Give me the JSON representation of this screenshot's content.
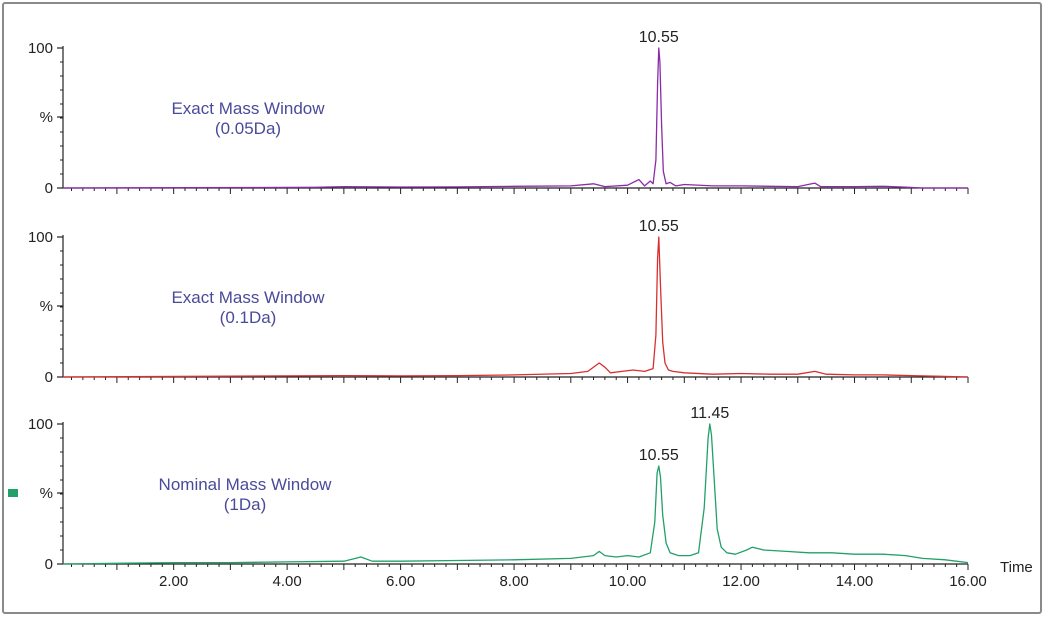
{
  "chart_data": {
    "type": "line",
    "x_range": [
      0.05,
      16.0
    ],
    "x_axis_label": "Time",
    "x_tick_labels": [
      "2.00",
      "4.00",
      "6.00",
      "8.00",
      "10.00",
      "12.00",
      "14.00",
      "16.00"
    ],
    "x_tick_values": [
      2,
      4,
      6,
      8,
      10,
      12,
      14,
      16
    ],
    "panels": [
      {
        "annotation": [
          "Exact Mass Window",
          "(0.05Da)"
        ],
        "annotation_color": "#4a4a9a",
        "color": "#8a2ca8",
        "y_tick_labels": [
          "100",
          "%",
          "0"
        ],
        "y_range": [
          0,
          100
        ],
        "peaks": [
          {
            "x": 10.55,
            "y": 100,
            "label": "10.55"
          }
        ],
        "series": [
          [
            0.05,
            0
          ],
          [
            4.5,
            0.5
          ],
          [
            5.0,
            1
          ],
          [
            6.0,
            0.7
          ],
          [
            7.0,
            0.8
          ],
          [
            8.0,
            1.2
          ],
          [
            9.0,
            1.5
          ],
          [
            9.4,
            3
          ],
          [
            9.6,
            1
          ],
          [
            10.0,
            2
          ],
          [
            10.2,
            6
          ],
          [
            10.3,
            1.5
          ],
          [
            10.4,
            5
          ],
          [
            10.45,
            3
          ],
          [
            10.5,
            20
          ],
          [
            10.53,
            75
          ],
          [
            10.55,
            100
          ],
          [
            10.57,
            90
          ],
          [
            10.6,
            45
          ],
          [
            10.63,
            12
          ],
          [
            10.68,
            3
          ],
          [
            10.75,
            4
          ],
          [
            10.85,
            1.5
          ],
          [
            11.0,
            2.5
          ],
          [
            11.5,
            1.5
          ],
          [
            12.0,
            1.5
          ],
          [
            12.5,
            1.2
          ],
          [
            13.0,
            1
          ],
          [
            13.3,
            3.5
          ],
          [
            13.4,
            1
          ],
          [
            14.0,
            1
          ],
          [
            14.5,
            1.2
          ],
          [
            14.9,
            0.6
          ],
          [
            15.2,
            0
          ],
          [
            16.0,
            0
          ]
        ]
      },
      {
        "annotation": [
          "Exact Mass Window",
          "(0.1Da)"
        ],
        "annotation_color": "#4a4a9a",
        "color": "#d83030",
        "y_tick_labels": [
          "100",
          "%",
          "0"
        ],
        "y_range": [
          0,
          100
        ],
        "peaks": [
          {
            "x": 10.55,
            "y": 100,
            "label": "10.55"
          }
        ],
        "series": [
          [
            0.05,
            0
          ],
          [
            5.0,
            1
          ],
          [
            6.0,
            0.8
          ],
          [
            7.0,
            1
          ],
          [
            8.0,
            1.5
          ],
          [
            9.0,
            2.5
          ],
          [
            9.3,
            4
          ],
          [
            9.5,
            10
          ],
          [
            9.6,
            7
          ],
          [
            9.7,
            3
          ],
          [
            9.9,
            4
          ],
          [
            10.1,
            5
          ],
          [
            10.3,
            4
          ],
          [
            10.45,
            6
          ],
          [
            10.5,
            30
          ],
          [
            10.53,
            85
          ],
          [
            10.55,
            100
          ],
          [
            10.58,
            65
          ],
          [
            10.62,
            25
          ],
          [
            10.66,
            10
          ],
          [
            10.72,
            5
          ],
          [
            10.8,
            4
          ],
          [
            11.0,
            3
          ],
          [
            11.5,
            2
          ],
          [
            12.0,
            2.5
          ],
          [
            12.5,
            2
          ],
          [
            13.0,
            2
          ],
          [
            13.3,
            4
          ],
          [
            13.5,
            2
          ],
          [
            14.0,
            1.5
          ],
          [
            14.5,
            1.5
          ],
          [
            15.0,
            1
          ],
          [
            15.5,
            0.5
          ],
          [
            16.0,
            0
          ]
        ]
      },
      {
        "annotation": [
          "Nominal Mass Window",
          "(1Da)"
        ],
        "annotation_color": "#4a4a9a",
        "color": "#22a06a",
        "y_tick_labels": [
          "100",
          "%",
          "0"
        ],
        "y_range": [
          0,
          100
        ],
        "peaks": [
          {
            "x": 10.55,
            "y": 70,
            "label": "10.55"
          },
          {
            "x": 11.45,
            "y": 100,
            "label": "11.45"
          }
        ],
        "series": [
          [
            0.05,
            0
          ],
          [
            1.0,
            0.5
          ],
          [
            2.0,
            1
          ],
          [
            3.0,
            1
          ],
          [
            4.0,
            1.5
          ],
          [
            5.0,
            2
          ],
          [
            5.3,
            5
          ],
          [
            5.5,
            2
          ],
          [
            6.0,
            2
          ],
          [
            7.0,
            2.5
          ],
          [
            8.0,
            3
          ],
          [
            9.0,
            4
          ],
          [
            9.4,
            6
          ],
          [
            9.5,
            9
          ],
          [
            9.6,
            6
          ],
          [
            9.8,
            5
          ],
          [
            10.0,
            6
          ],
          [
            10.2,
            5
          ],
          [
            10.4,
            8
          ],
          [
            10.48,
            30
          ],
          [
            10.52,
            65
          ],
          [
            10.55,
            70
          ],
          [
            10.58,
            62
          ],
          [
            10.62,
            35
          ],
          [
            10.68,
            15
          ],
          [
            10.75,
            8
          ],
          [
            10.9,
            6
          ],
          [
            11.1,
            6
          ],
          [
            11.25,
            8
          ],
          [
            11.35,
            40
          ],
          [
            11.42,
            90
          ],
          [
            11.45,
            100
          ],
          [
            11.48,
            92
          ],
          [
            11.52,
            65
          ],
          [
            11.58,
            25
          ],
          [
            11.65,
            12
          ],
          [
            11.75,
            8
          ],
          [
            11.9,
            7
          ],
          [
            12.1,
            10
          ],
          [
            12.2,
            12
          ],
          [
            12.4,
            10
          ],
          [
            12.8,
            9
          ],
          [
            13.2,
            8
          ],
          [
            13.6,
            8
          ],
          [
            14.0,
            7
          ],
          [
            14.5,
            7
          ],
          [
            14.9,
            6
          ],
          [
            15.2,
            4
          ],
          [
            15.6,
            3
          ],
          [
            16.0,
            1
          ]
        ]
      }
    ]
  },
  "legend_marker_color": "#22a06a"
}
